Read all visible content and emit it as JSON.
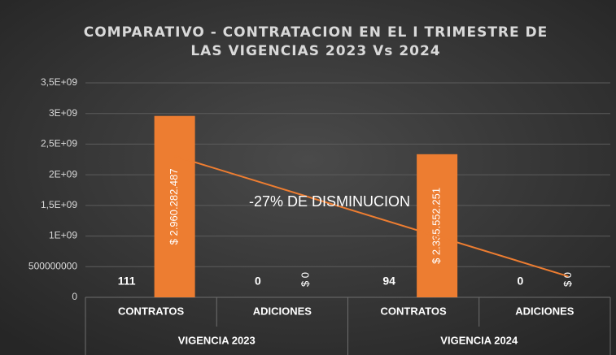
{
  "chart_data": {
    "type": "bar",
    "title": [
      "COMPARATIVO - CONTRATACION EN EL I TRIMESTRE DE",
      "LAS VIGENCIAS 2023 Vs 2024"
    ],
    "categories": [
      "CONTRATOS",
      "ADICIONES",
      "CONTRATOS",
      "ADICIONES"
    ],
    "groups": [
      "VIGENCIA 2023",
      "VIGENCIA 2024"
    ],
    "series": [
      {
        "color": "#ed7d31",
        "values": [
          111,
          0,
          94,
          0
        ]
      },
      {
        "color": "#ed7d31",
        "values": [
          2960282487,
          0,
          2335552251,
          0
        ],
        "value_labels": [
          "$ 2.960.282.487",
          "$ 0",
          "$ 2.335.552.251",
          "$ 0"
        ],
        "trendline": "linear"
      }
    ],
    "annotation": "-27% DE DISMINUCION",
    "ylim": [
      0,
      3500000000
    ],
    "yticks": [
      0,
      500000000,
      {
        "value": 1000000000,
        "label": "1E+09"
      },
      {
        "value": 1500000000,
        "label": "1,5E+09"
      },
      {
        "value": 2000000000,
        "label": "2E+09"
      },
      {
        "value": 2500000000,
        "label": "2,5E+09"
      },
      {
        "value": 3000000000,
        "label": "3E+09"
      },
      {
        "value": 3500000000,
        "label": "3,5E+09"
      }
    ],
    "grid": true
  }
}
